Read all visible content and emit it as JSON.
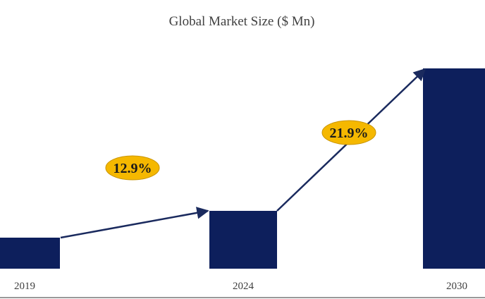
{
  "chart_data": {
    "type": "bar",
    "title": "Global Market Size ($ Mn)",
    "xlabel": "",
    "ylabel": "",
    "categories": [
      "2019",
      "2024",
      "2030"
    ],
    "values": [
      44,
      82,
      284
    ],
    "ylim": [
      0,
      300
    ],
    "grid": false,
    "legend": "none",
    "annotations": [
      {
        "label": "12.9%",
        "from": "2019",
        "to": "2024"
      },
      {
        "label": "21.9%",
        "from": "2024",
        "to": "2030"
      }
    ],
    "colors": {
      "bar": "#0d1f5c",
      "arrow": "#1a2a5e",
      "badge_fill": "#f5b800",
      "badge_stroke": "#c99400",
      "axis": "#333333"
    }
  }
}
